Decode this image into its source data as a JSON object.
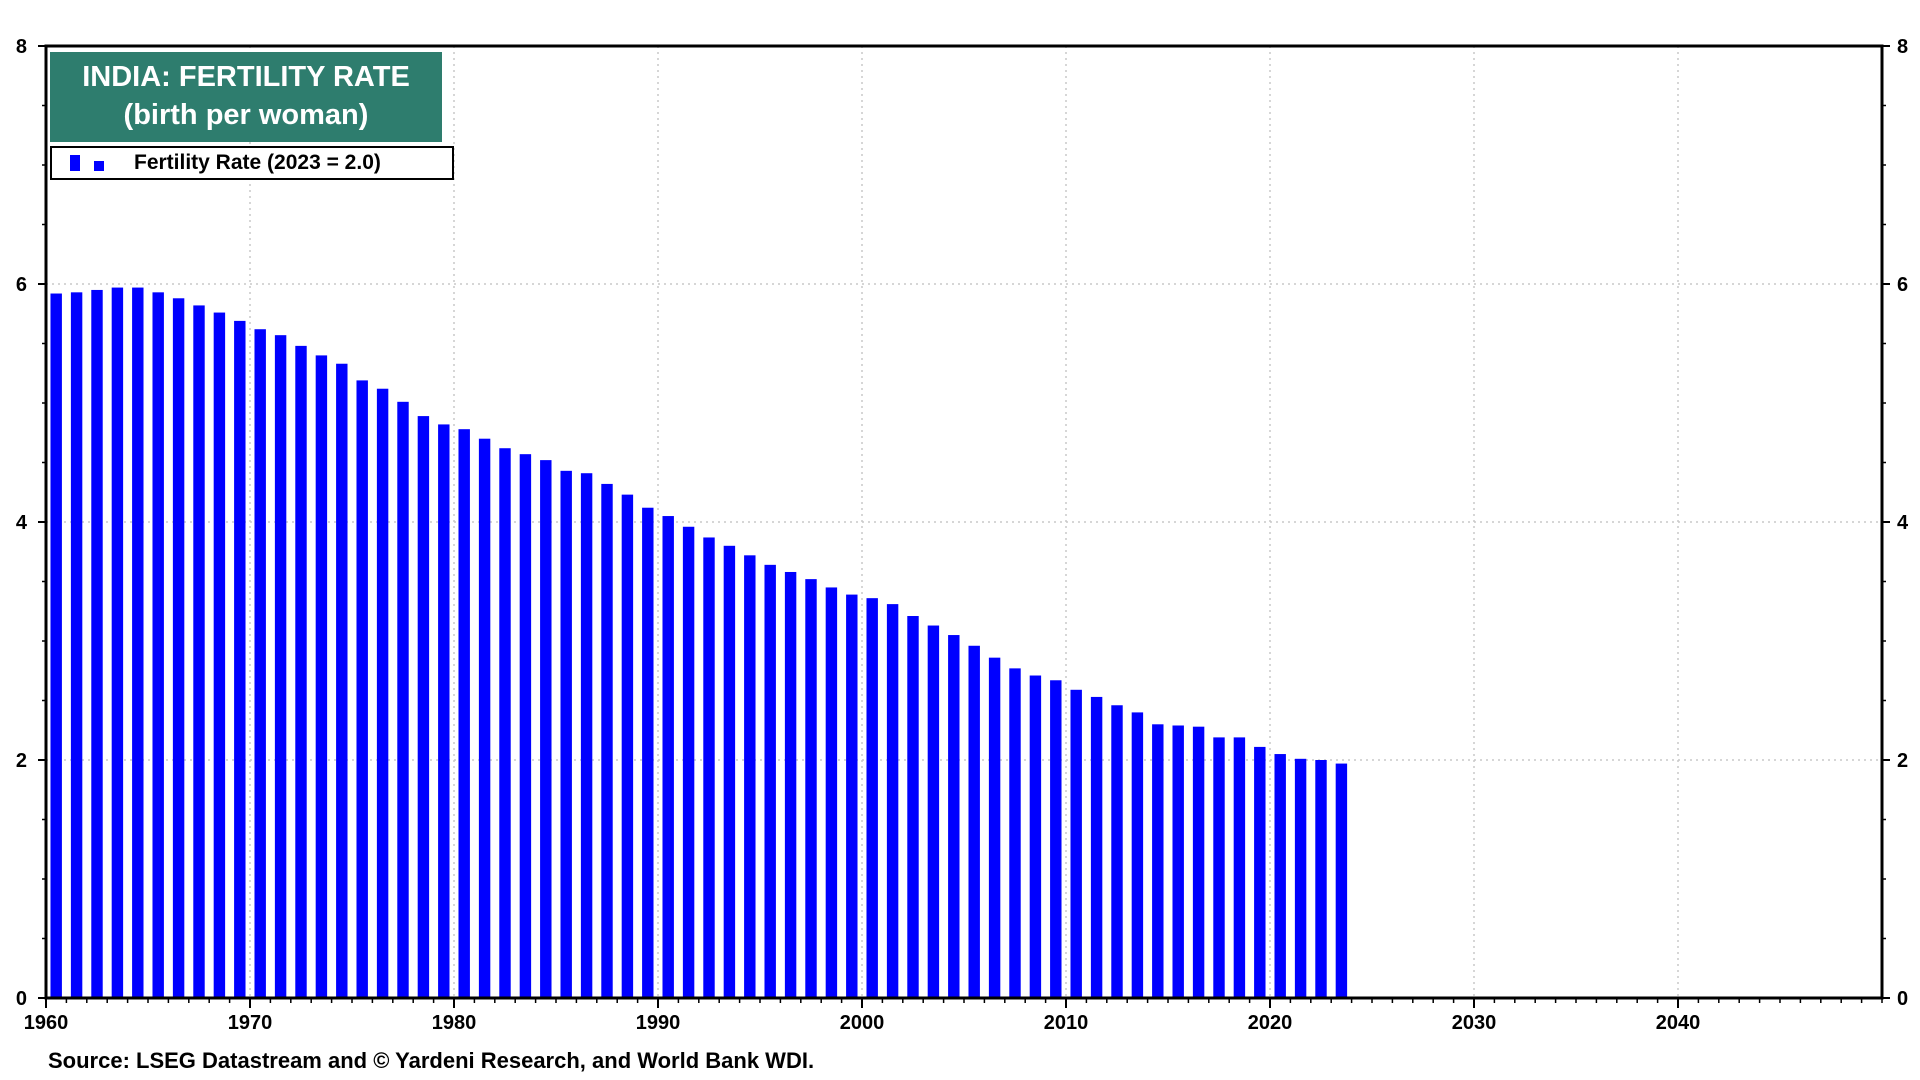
{
  "chart_data": {
    "type": "bar",
    "title": "INDIA: FERTILITY RATE",
    "subtitle": "(birth per woman)",
    "legend": {
      "placement": "top-left",
      "entries": [
        {
          "label": "Fertility Rate  (2023 = 2.0)",
          "color": "#0000ff"
        }
      ]
    },
    "source": "Source: LSEG Datastream and © Yardeni Research, and World Bank WDI.",
    "xlim": [
      1960,
      2050
    ],
    "ylim": [
      0,
      8
    ],
    "x_ticks": [
      1960,
      1970,
      1980,
      1990,
      2000,
      2010,
      2020,
      2030,
      2040
    ],
    "y_ticks": [
      0,
      2,
      4,
      6,
      8
    ],
    "y_axis_both_sides": true,
    "grid": true,
    "title_box_color": "#2e7d6e",
    "bar_color": "#0000ff",
    "series": [
      {
        "name": "Fertility Rate",
        "x": [
          1960,
          1961,
          1962,
          1963,
          1964,
          1965,
          1966,
          1967,
          1968,
          1969,
          1970,
          1971,
          1972,
          1973,
          1974,
          1975,
          1976,
          1977,
          1978,
          1979,
          1980,
          1981,
          1982,
          1983,
          1984,
          1985,
          1986,
          1987,
          1988,
          1989,
          1990,
          1991,
          1992,
          1993,
          1994,
          1995,
          1996,
          1997,
          1998,
          1999,
          2000,
          2001,
          2002,
          2003,
          2004,
          2005,
          2006,
          2007,
          2008,
          2009,
          2010,
          2011,
          2012,
          2013,
          2014,
          2015,
          2016,
          2017,
          2018,
          2019,
          2020,
          2021,
          2022,
          2023
        ],
        "values": [
          5.92,
          5.93,
          5.95,
          5.97,
          5.97,
          5.93,
          5.88,
          5.82,
          5.76,
          5.69,
          5.62,
          5.57,
          5.48,
          5.4,
          5.33,
          5.19,
          5.12,
          5.01,
          4.89,
          4.82,
          4.78,
          4.7,
          4.62,
          4.57,
          4.52,
          4.43,
          4.41,
          4.32,
          4.23,
          4.12,
          4.05,
          3.96,
          3.87,
          3.8,
          3.72,
          3.64,
          3.58,
          3.52,
          3.45,
          3.39,
          3.36,
          3.31,
          3.21,
          3.13,
          3.05,
          2.96,
          2.86,
          2.77,
          2.71,
          2.67,
          2.59,
          2.53,
          2.46,
          2.4,
          2.3,
          2.29,
          2.28,
          2.19,
          2.19,
          2.11,
          2.05,
          2.01,
          2.0,
          1.97
        ]
      }
    ]
  }
}
